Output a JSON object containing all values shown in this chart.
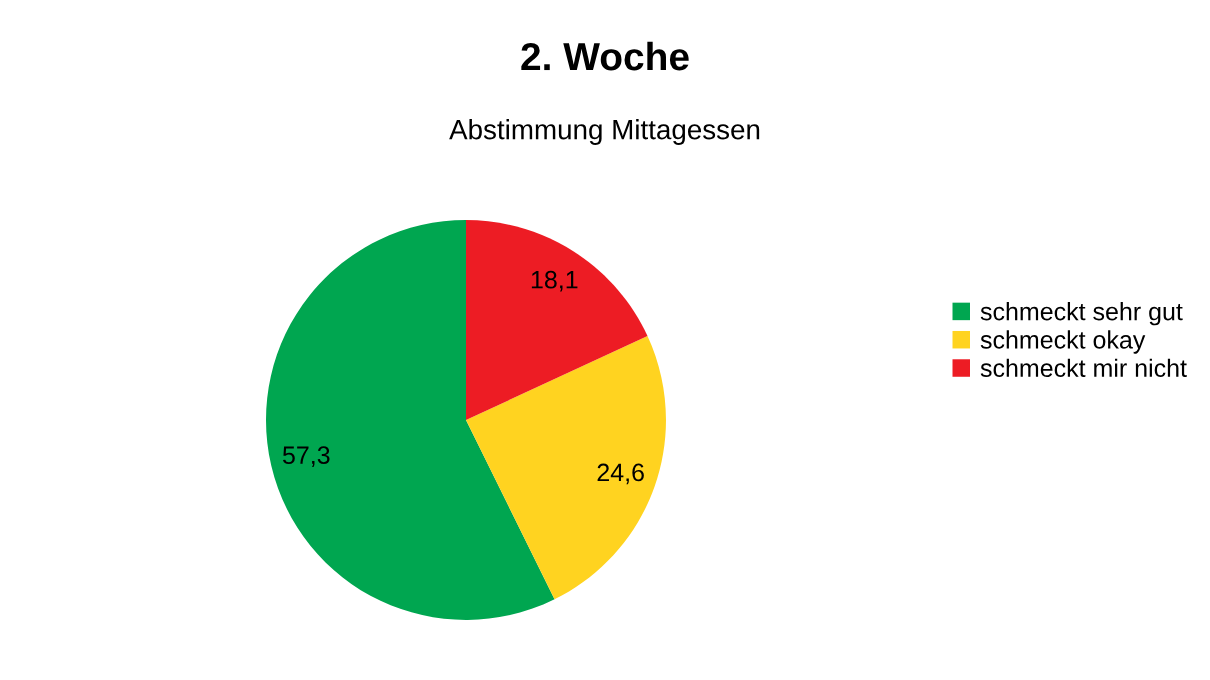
{
  "chart_data": {
    "type": "pie",
    "title": "2. Woche",
    "subtitle": "Abstimmung Mittagessen",
    "categories": [
      "schmeckt sehr gut",
      "schmeckt okay",
      "schmeckt mir nicht"
    ],
    "values": [
      57.3,
      24.6,
      18.1
    ],
    "value_labels": [
      "57,3",
      "24,6",
      "18,1"
    ],
    "colors": [
      "#00a650",
      "#ffd320",
      "#ed1c24"
    ],
    "legend": "right"
  }
}
